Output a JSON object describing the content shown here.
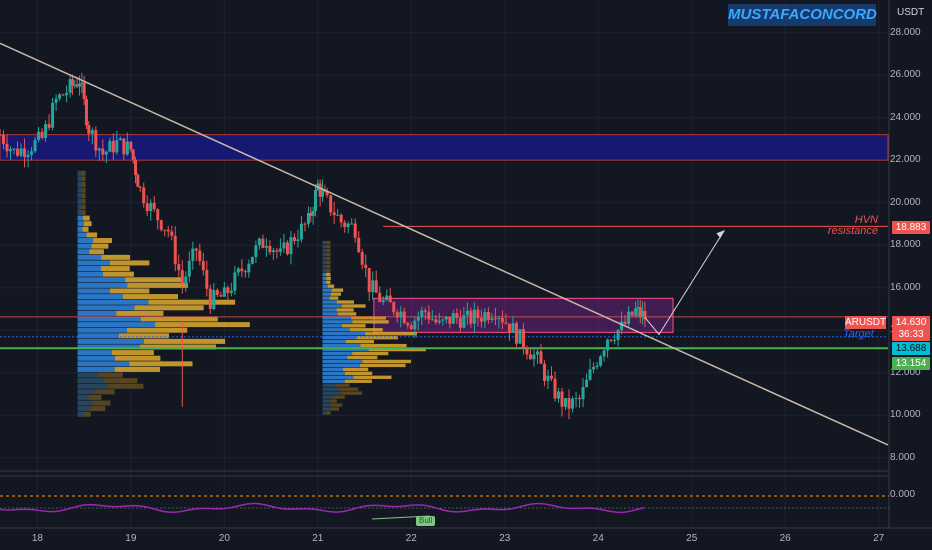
{
  "header": {
    "watermark": "MUSTAFACONCORD",
    "currency": "USDT"
  },
  "colors": {
    "background": "#131722",
    "up": "#26a69a",
    "down": "#ef5350",
    "trendline": "#c9b8a6",
    "blue_zone": "#1a1a8c",
    "purple_zone": "#9c27b0",
    "vp_blue": "#2f81d6",
    "vp_gold": "#d4a330"
  },
  "annotations": {
    "hvn_line1": "HVN",
    "hvn_line2": "resistance",
    "hvn_value": "18.883",
    "target_label": "Target"
  },
  "price_tags": {
    "symbol": "ARUSDT",
    "last_price": "14.630",
    "countdown": "36:33",
    "blue_level": "13.688",
    "green_level": "13.154"
  },
  "osc": {
    "zero_label": "0.000",
    "badge": "Bull"
  },
  "chart_data": {
    "type": "line",
    "title": "",
    "ylabel": "USDT",
    "ylim": [
      7.8,
      28.5
    ],
    "y_ticks": [
      "28.000",
      "26.000",
      "24.000",
      "22.000",
      "20.000",
      "18.000",
      "16.000",
      "14.000",
      "12.000",
      "10.000",
      "8.000"
    ],
    "y_tick_values": [
      28,
      26,
      24,
      22,
      20,
      18,
      16,
      14,
      12,
      10,
      8
    ],
    "x_ticks": [
      "18",
      "19",
      "20",
      "21",
      "22",
      "23",
      "24",
      "25",
      "26",
      "27"
    ],
    "xlim": [
      17.6,
      27.1
    ],
    "close_series": {
      "x": [
        17.6,
        17.75,
        17.9,
        18.05,
        18.2,
        18.35,
        18.45,
        18.55,
        18.7,
        18.85,
        19.0,
        19.1,
        19.25,
        19.4,
        19.55,
        19.7,
        19.85,
        20.0,
        20.15,
        20.3,
        20.45,
        20.6,
        20.75,
        20.9,
        21.0,
        21.1,
        21.25,
        21.4,
        21.55,
        21.7,
        21.85,
        22.0,
        22.15,
        22.3,
        22.45,
        22.6,
        22.75,
        22.9,
        23.05,
        23.2,
        23.35,
        23.5,
        23.65,
        23.8,
        23.95,
        24.1,
        24.25,
        24.4,
        24.5
      ],
      "y": [
        23.2,
        22.4,
        22.6,
        23.0,
        24.8,
        25.4,
        25.8,
        23.5,
        22.3,
        22.8,
        22.5,
        20.6,
        19.5,
        18.7,
        16.2,
        17.8,
        15.4,
        15.6,
        16.6,
        17.6,
        18.3,
        17.5,
        18.4,
        19.1,
        20.8,
        20.0,
        19.1,
        18.8,
        16.1,
        15.3,
        15.0,
        14.4,
        14.9,
        14.2,
        14.6,
        14.5,
        14.7,
        15.0,
        14.2,
        13.4,
        12.6,
        11.3,
        10.4,
        10.7,
        12.3,
        13.7,
        14.1,
        14.9,
        14.6
      ]
    },
    "trendline": {
      "x": [
        17.6,
        27.1
      ],
      "y": [
        27.5,
        8.6
      ]
    },
    "horizontal_levels": [
      {
        "name": "hvn-resistance",
        "y": 18.883,
        "color": "#ef5350"
      },
      {
        "name": "support-blue",
        "y": 13.688,
        "color": "#2962ff"
      },
      {
        "name": "support-green",
        "y": 13.154,
        "color": "#4caf50"
      },
      {
        "name": "poc",
        "y": 14.63,
        "color": "#ef5350"
      }
    ],
    "zones": [
      {
        "name": "blue-resistance-zone",
        "x": [
          17.6,
          27.1
        ],
        "y": [
          22.0,
          23.2
        ]
      },
      {
        "name": "purple-range-zone",
        "x": [
          21.6,
          24.8
        ],
        "y": [
          13.9,
          15.5
        ]
      }
    ],
    "volume_profiles": [
      {
        "x_start": 18.43,
        "y_top": 21.5,
        "y_bottom": 9.9
      },
      {
        "x_start": 21.05,
        "y_top": 18.2,
        "y_bottom": 10.0
      }
    ],
    "projection": {
      "x": [
        24.5,
        24.65,
        25.35
      ],
      "y": [
        14.6,
        13.8,
        18.7
      ]
    },
    "legend": "none",
    "grid": true
  }
}
